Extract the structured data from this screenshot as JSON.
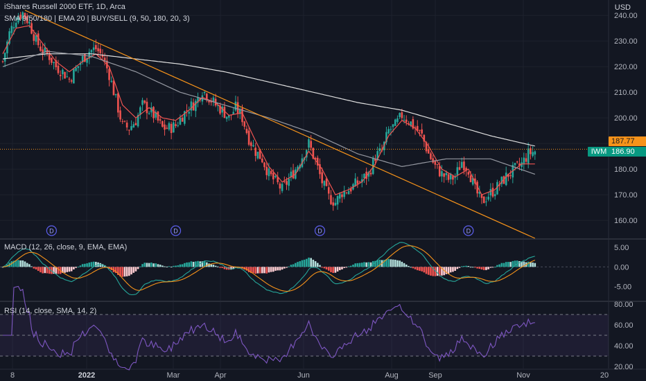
{
  "header": {
    "title": "iShares Russell 2000 ETF, 1D, Arca",
    "indicators": "SMA 9/50/180 | EMA 20 | BUY/SELL (9, 50, 180, 20, 3)",
    "currency": "USD",
    "macd_label": "MACD (12, 26, close, 9, EMA, EMA)",
    "rsi_label": "RSI (14, close, SMA, 14, 2)"
  },
  "price_tags": {
    "symbol": "IWM",
    "last_price": "186.90",
    "ema_value": "187.77"
  },
  "dividend_marker": "D",
  "colors": {
    "background": "#131722",
    "up": "#26a69a",
    "down": "#ef5350",
    "sma_fast": "#ef5350",
    "sma_slow": "#e0e0e0",
    "sma_mid": "#9598a1",
    "trendline": "#f7931a",
    "macd_line": "#26a69a",
    "signal_line": "#f7931a",
    "rsi_line": "#7e57c2",
    "rsi_band": "#7e57c2"
  },
  "chart_data": [
    {
      "type": "candlestick",
      "panel": "price",
      "y_ticks": [
        "240.00",
        "230.00",
        "220.00",
        "210.00",
        "200.00",
        "190.00",
        "180.00",
        "170.00",
        "160.00"
      ],
      "ylim": [
        153,
        246
      ],
      "x_ticks": [
        "8",
        "2022",
        "Mar",
        "Apr",
        "Jun",
        "Aug",
        "Sep",
        "Nov",
        "20"
      ],
      "close_path": [
        [
          0,
          222
        ],
        [
          3,
          233
        ],
        [
          6,
          239
        ],
        [
          9,
          241
        ],
        [
          12,
          237
        ],
        [
          15,
          230
        ],
        [
          18,
          226
        ],
        [
          21,
          224
        ],
        [
          24,
          220
        ],
        [
          27,
          218
        ],
        [
          30,
          215
        ],
        [
          33,
          219
        ],
        [
          36,
          223
        ],
        [
          39,
          226
        ],
        [
          42,
          227
        ],
        [
          45,
          224
        ],
        [
          48,
          217
        ],
        [
          51,
          207
        ],
        [
          54,
          197
        ],
        [
          57,
          196
        ],
        [
          60,
          199
        ],
        [
          63,
          205
        ],
        [
          66,
          203
        ],
        [
          69,
          200
        ],
        [
          72,
          196
        ],
        [
          75,
          196
        ],
        [
          78,
          197
        ],
        [
          81,
          201
        ],
        [
          84,
          204
        ],
        [
          87,
          206
        ],
        [
          90,
          211
        ],
        [
          93,
          208
        ],
        [
          96,
          205
        ],
        [
          99,
          203
        ],
        [
          102,
          200
        ],
        [
          105,
          204
        ],
        [
          108,
          200
        ],
        [
          111,
          192
        ],
        [
          114,
          187
        ],
        [
          117,
          184
        ],
        [
          120,
          178
        ],
        [
          123,
          175
        ],
        [
          126,
          172
        ],
        [
          129,
          176
        ],
        [
          132,
          180
        ],
        [
          135,
          185
        ],
        [
          138,
          190
        ],
        [
          141,
          183
        ],
        [
          144,
          175
        ],
        [
          147,
          169
        ],
        [
          150,
          167
        ],
        [
          153,
          171
        ],
        [
          156,
          172
        ],
        [
          159,
          174
        ],
        [
          162,
          176
        ],
        [
          165,
          178
        ],
        [
          168,
          185
        ],
        [
          171,
          187
        ],
        [
          174,
          195
        ],
        [
          177,
          197
        ],
        [
          180,
          201
        ],
        [
          183,
          199
        ],
        [
          186,
          196
        ],
        [
          189,
          193
        ],
        [
          192,
          186
        ],
        [
          195,
          181
        ],
        [
          198,
          178
        ],
        [
          201,
          176
        ],
        [
          204,
          177
        ],
        [
          207,
          183
        ],
        [
          210,
          180
        ],
        [
          213,
          172
        ],
        [
          216,
          167
        ],
        [
          219,
          170
        ],
        [
          222,
          172
        ],
        [
          225,
          175
        ],
        [
          228,
          178
        ],
        [
          231,
          180
        ],
        [
          234,
          182
        ],
        [
          237,
          186
        ],
        [
          240,
          187
        ]
      ],
      "dividends_at_bar": [
        22,
        78,
        143,
        210
      ]
    },
    {
      "type": "line",
      "panel": "price",
      "series": [
        {
          "role": "sma_fast",
          "values_path": [
            [
              0,
              225
            ],
            [
              6,
              235
            ],
            [
              12,
              236
            ],
            [
              18,
              229
            ],
            [
              24,
              222
            ],
            [
              30,
              218
            ],
            [
              36,
              222
            ],
            [
              42,
              225
            ],
            [
              48,
              220
            ],
            [
              54,
              205
            ],
            [
              60,
              200
            ],
            [
              66,
              204
            ],
            [
              72,
              200
            ],
            [
              78,
              199
            ],
            [
              84,
              203
            ],
            [
              90,
              208
            ],
            [
              96,
              206
            ],
            [
              102,
              201
            ],
            [
              108,
              202
            ],
            [
              114,
              191
            ],
            [
              120,
              181
            ],
            [
              126,
              175
            ],
            [
              132,
              178
            ],
            [
              138,
              187
            ],
            [
              144,
              180
            ],
            [
              150,
              170
            ],
            [
              156,
              172
            ],
            [
              162,
              175
            ],
            [
              168,
              182
            ],
            [
              174,
              193
            ],
            [
              180,
              199
            ],
            [
              186,
              196
            ],
            [
              192,
              189
            ],
            [
              198,
              180
            ],
            [
              204,
              177
            ],
            [
              210,
              180
            ],
            [
              216,
              170
            ],
            [
              222,
              172
            ],
            [
              228,
              178
            ],
            [
              234,
              182
            ],
            [
              240,
              182
            ]
          ]
        },
        {
          "role": "sma_slow",
          "values_path": [
            [
              0,
              223
            ],
            [
              20,
              225
            ],
            [
              40,
              225
            ],
            [
              60,
              223
            ],
            [
              80,
              221
            ],
            [
              100,
              218
            ],
            [
              120,
              214
            ],
            [
              140,
              210
            ],
            [
              160,
              206
            ],
            [
              180,
              203
            ],
            [
              200,
              198
            ],
            [
              220,
              193
            ],
            [
              240,
              189
            ]
          ]
        },
        {
          "role": "sma_mid",
          "values_path": [
            [
              0,
              220
            ],
            [
              20,
              226
            ],
            [
              40,
              224
            ],
            [
              60,
              218
            ],
            [
              80,
              210
            ],
            [
              100,
              205
            ],
            [
              120,
              200
            ],
            [
              140,
              194
            ],
            [
              160,
              186
            ],
            [
              180,
              181
            ],
            [
              200,
              184
            ],
            [
              220,
              184
            ],
            [
              240,
              178
            ]
          ]
        },
        {
          "role": "trendline",
          "values_path": [
            [
              10,
              242
            ],
            [
              240,
              153
            ]
          ]
        }
      ]
    },
    {
      "type": "bar",
      "panel": "macd",
      "y_ticks": [
        "5.00",
        "0.00",
        "-5.00"
      ],
      "ylim": [
        -8.5,
        7
      ]
    },
    {
      "type": "line",
      "panel": "rsi",
      "y_ticks": [
        "80.00",
        "60.00",
        "40.00",
        "20.00"
      ],
      "ylim": [
        18,
        82
      ],
      "bands": [
        30,
        50,
        70
      ]
    }
  ]
}
